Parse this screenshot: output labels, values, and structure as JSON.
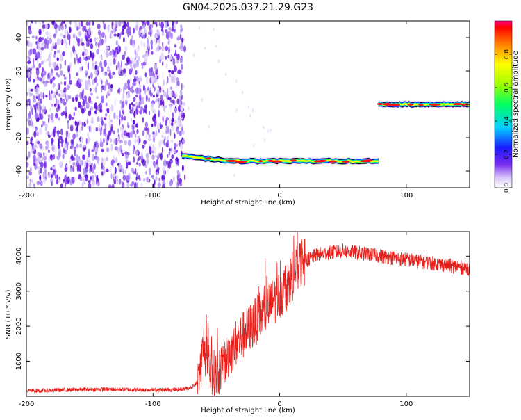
{
  "title": "GN04.2025.037.21.29.G23",
  "colors": {
    "background": "#ffffff",
    "axis": "#000000",
    "snr_line": "#e8201c",
    "noise_purple": "#7a2cf0",
    "band_outline": "#000000"
  },
  "chart_data": [
    {
      "type": "heatmap",
      "title": "GN04.2025.037.21.29.G23",
      "xlabel": "Height of straight line (km)",
      "ylabel": "Frequency (Hz)",
      "xlim": [
        -200,
        150
      ],
      "ylim": [
        -50,
        50
      ],
      "xticks": [
        -200,
        -100,
        0,
        100
      ],
      "yticks": [
        -40,
        -20,
        0,
        20,
        40
      ],
      "grid": false,
      "noise_region": {
        "x_range": [
          -200,
          -77
        ],
        "y_range": [
          -50,
          50
        ]
      },
      "ridges": [
        {
          "x_range": [
            -77,
            78
          ],
          "y_start": -31,
          "y_end": -34,
          "y_typical": -34
        },
        {
          "x_range": [
            78,
            150
          ],
          "y_start": 0,
          "y_end": 0,
          "y_typical": 0
        }
      ],
      "colorbar": {
        "label": "Normalized spectral amplitude",
        "range": [
          0,
          1
        ],
        "ticks": [
          "0.0",
          "0.2",
          "0.4",
          "0.6",
          "0.8"
        ],
        "tick_values": [
          0.0,
          0.2,
          0.4,
          0.6,
          0.8
        ]
      }
    },
    {
      "type": "line",
      "xlabel": "Height of straight line (km)",
      "ylabel": "SNR (10 * v/v)",
      "xlim": [
        -200,
        150
      ],
      "ylim": [
        0,
        4700
      ],
      "xticks": [
        -200,
        -100,
        0,
        100
      ],
      "yticks": [
        1000,
        2000,
        3000,
        4000
      ],
      "grid": false,
      "series": [
        {
          "x": [
            -200,
            -180,
            -160,
            -140,
            -120,
            -100,
            -80,
            -70,
            -65,
            -62,
            -60,
            -58,
            -55,
            -50,
            -45,
            -40,
            -35,
            -30,
            -25,
            -20,
            -15,
            -10,
            -5,
            0,
            5,
            10,
            15,
            20,
            25,
            30,
            40,
            50,
            60,
            70,
            80,
            90,
            100,
            110,
            120,
            130,
            140,
            150
          ],
          "y": [
            150,
            170,
            190,
            200,
            190,
            180,
            190,
            250,
            400,
            900,
            1500,
            1100,
            700,
            600,
            900,
            1200,
            1500,
            1700,
            1900,
            2100,
            2300,
            2500,
            2700,
            2900,
            3100,
            3400,
            3700,
            3850,
            3950,
            4050,
            4100,
            4150,
            4100,
            4050,
            4000,
            3950,
            3900,
            3850,
            3800,
            3750,
            3700,
            3650
          ]
        }
      ]
    }
  ]
}
